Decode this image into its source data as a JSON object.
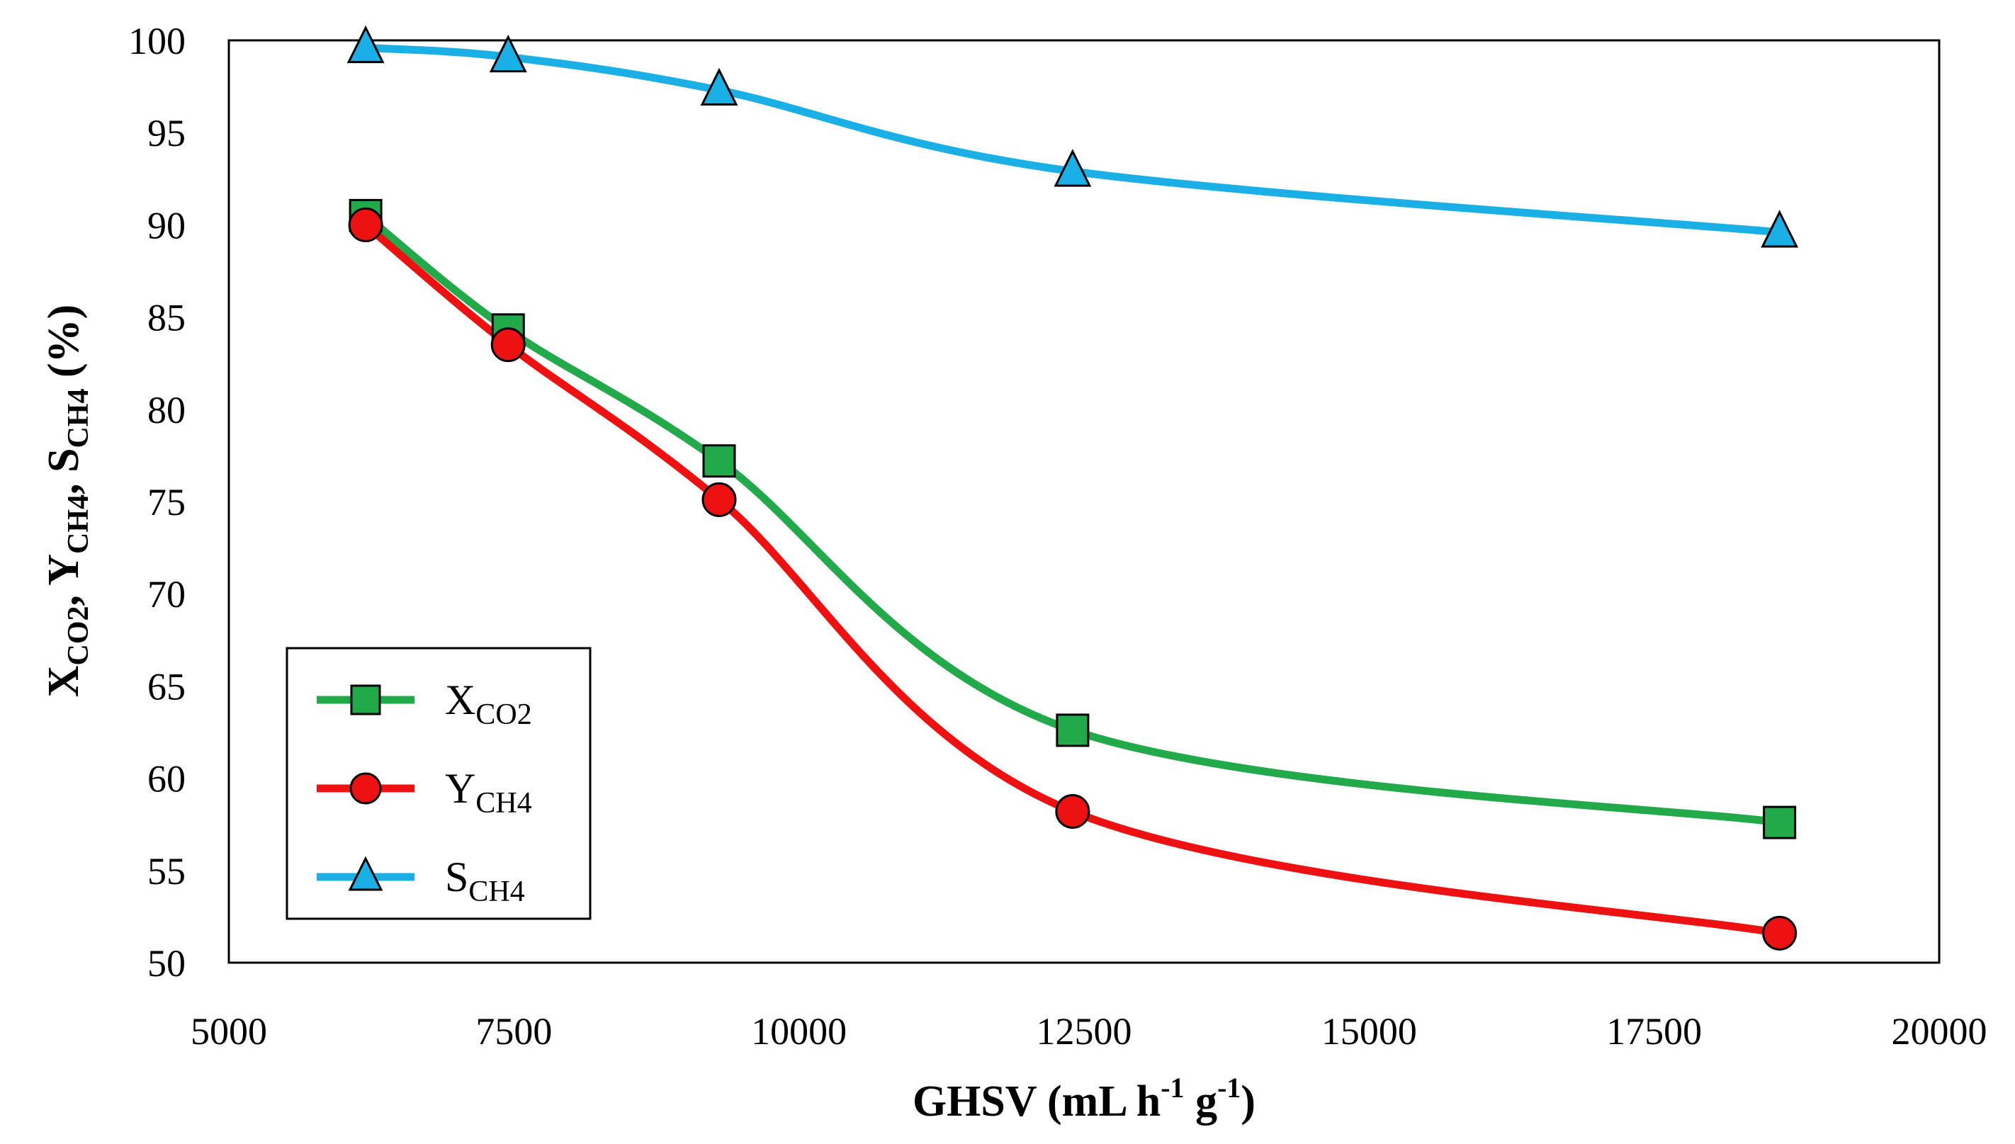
{
  "chart_data": {
    "type": "line",
    "title": "",
    "xlabel": {
      "main": "GHSV (mL h",
      "sup1": "-1",
      "mid": " g",
      "sup2": "-1",
      "end": ")"
    },
    "ylabel": [
      {
        "text": "X",
        "sub": "CO2"
      },
      {
        "text": ", Y",
        "sub": "CH4"
      },
      {
        "text": ", S",
        "sub": "CH4"
      },
      {
        "text": " (%)",
        "sub": ""
      }
    ],
    "xlim": [
      5000,
      20000
    ],
    "ylim": [
      50,
      100
    ],
    "xticks": [
      5000,
      7500,
      10000,
      12500,
      15000,
      17500,
      20000
    ],
    "yticks": [
      50,
      55,
      60,
      65,
      70,
      75,
      80,
      85,
      90,
      95,
      100
    ],
    "grid": false,
    "legend_position": "bottom-left",
    "series": [
      {
        "name": "X",
        "name_sub": "CO2",
        "marker": "square",
        "color": "#22a94a",
        "x": [
          6200,
          7450,
          9300,
          12400,
          18600
        ],
        "y": [
          90.5,
          84.3,
          77.2,
          62.6,
          57.6
        ]
      },
      {
        "name": "Y",
        "name_sub": "CH4",
        "marker": "circle",
        "color": "#ee1111",
        "x": [
          6200,
          7450,
          9300,
          12400,
          18600
        ],
        "y": [
          90.0,
          83.5,
          75.1,
          58.2,
          51.6
        ]
      },
      {
        "name": "S",
        "name_sub": "CH4",
        "marker": "triangle",
        "color": "#1ab0e6",
        "x": [
          6200,
          7450,
          9300,
          12400,
          18600
        ],
        "y": [
          99.6,
          99.1,
          97.3,
          92.9,
          89.6
        ]
      }
    ]
  }
}
